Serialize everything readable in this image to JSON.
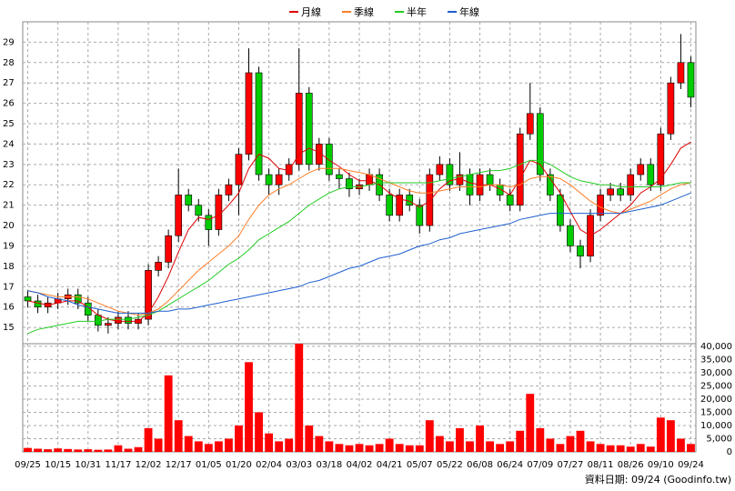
{
  "chart_data": [
    {
      "type": "candlestick",
      "ylim": [
        14.2,
        30.0
      ],
      "yticks": [
        15,
        16,
        17,
        18,
        19,
        20,
        21,
        22,
        23,
        24,
        25,
        26,
        27,
        28,
        29
      ],
      "grid": true,
      "up_color": "#ff0000",
      "down_color": "#00cc00",
      "open": [
        16.5,
        16.3,
        16.0,
        16.2,
        16.4,
        16.6,
        16.2,
        15.6,
        15.1,
        15.2,
        15.5,
        15.2,
        15.4,
        17.8,
        18.2,
        19.5,
        21.5,
        21.0,
        20.5,
        19.8,
        21.5,
        22.0,
        23.5,
        27.5,
        22.5,
        22.0,
        22.5,
        23.0,
        26.5,
        23.0,
        24.0,
        22.5,
        22.3,
        21.8,
        22.0,
        22.5,
        21.5,
        20.5,
        21.5,
        21.0,
        20.0,
        22.5,
        23.0,
        22.0,
        22.5,
        21.5,
        22.5,
        22.0,
        21.5,
        21.0,
        24.5,
        25.5,
        22.5,
        21.5,
        20.0,
        19.0,
        18.5,
        20.5,
        21.5,
        21.8,
        21.5,
        22.5,
        23.0,
        22.0,
        24.5,
        27.0,
        28.0
      ],
      "high": [
        16.8,
        16.6,
        16.5,
        16.7,
        16.9,
        16.9,
        16.5,
        15.9,
        15.5,
        15.8,
        15.8,
        15.7,
        18.1,
        18.5,
        19.8,
        22.8,
        21.8,
        21.3,
        20.8,
        21.8,
        22.3,
        23.8,
        28.7,
        27.8,
        22.8,
        22.8,
        23.3,
        28.7,
        26.8,
        24.3,
        24.3,
        22.8,
        22.6,
        22.3,
        22.8,
        22.8,
        21.8,
        21.8,
        21.8,
        21.3,
        22.8,
        23.4,
        23.3,
        23.6,
        22.8,
        22.8,
        22.8,
        22.3,
        21.8,
        24.8,
        27.0,
        25.8,
        22.8,
        21.8,
        20.3,
        19.3,
        20.8,
        21.8,
        22.1,
        22.1,
        22.8,
        23.3,
        23.3,
        24.8,
        27.3,
        29.4,
        28.3
      ],
      "low": [
        16.0,
        15.7,
        15.7,
        15.9,
        16.1,
        15.9,
        15.3,
        14.8,
        14.7,
        14.9,
        14.9,
        14.9,
        15.1,
        17.5,
        17.9,
        19.2,
        20.7,
        20.2,
        19.0,
        19.5,
        21.2,
        20.5,
        23.2,
        22.2,
        21.5,
        21.5,
        22.2,
        22.7,
        22.7,
        22.7,
        22.2,
        21.8,
        21.4,
        21.5,
        21.7,
        21.2,
        20.2,
        20.2,
        20.7,
        19.6,
        19.7,
        22.2,
        21.7,
        21.7,
        21.0,
        21.2,
        21.7,
        21.2,
        20.7,
        20.7,
        24.2,
        22.2,
        21.2,
        19.7,
        18.7,
        17.9,
        18.2,
        20.2,
        21.2,
        21.2,
        21.2,
        22.2,
        21.7,
        21.7,
        24.2,
        26.7,
        25.8
      ],
      "close": [
        16.3,
        16.0,
        16.2,
        16.4,
        16.6,
        16.2,
        15.6,
        15.1,
        15.2,
        15.5,
        15.2,
        15.4,
        17.8,
        18.2,
        19.5,
        21.5,
        21.0,
        20.5,
        19.8,
        21.5,
        22.0,
        23.5,
        27.5,
        22.5,
        22.0,
        22.5,
        23.0,
        26.5,
        23.0,
        24.0,
        22.5,
        22.3,
        21.8,
        22.0,
        22.5,
        21.5,
        20.5,
        21.5,
        21.0,
        20.0,
        22.5,
        23.0,
        22.0,
        22.5,
        21.5,
        22.5,
        22.0,
        21.5,
        21.0,
        24.5,
        25.5,
        22.5,
        21.5,
        20.0,
        19.0,
        18.5,
        20.5,
        21.5,
        21.8,
        21.5,
        22.5,
        23.0,
        22.0,
        24.5,
        27.0,
        28.0,
        26.3
      ],
      "series": [
        {
          "name": "月線",
          "color": "#e00000",
          "values": [
            16.3,
            16.2,
            16.1,
            16.2,
            16.3,
            16.3,
            16.0,
            15.6,
            15.4,
            15.3,
            15.3,
            15.3,
            15.7,
            16.5,
            17.5,
            18.7,
            19.8,
            20.4,
            20.3,
            20.5,
            21.0,
            21.6,
            22.8,
            23.5,
            23.3,
            22.8,
            22.7,
            23.5,
            23.8,
            23.6,
            23.2,
            22.9,
            22.5,
            22.2,
            22.2,
            22.0,
            21.6,
            21.3,
            21.2,
            20.9,
            21.2,
            21.8,
            22.2,
            22.3,
            22.1,
            22.0,
            22.0,
            21.8,
            21.5,
            22.3,
            23.2,
            23.0,
            22.3,
            21.6,
            20.7,
            19.8,
            19.5,
            19.8,
            20.2,
            20.6,
            21.0,
            21.6,
            21.9,
            22.3,
            23.0,
            23.8,
            24.1
          ]
        },
        {
          "name": "季線",
          "color": "#ff7f27",
          "values": [
            16.8,
            16.7,
            16.6,
            16.5,
            16.5,
            16.5,
            16.4,
            16.2,
            16.0,
            15.8,
            15.7,
            15.6,
            15.7,
            15.9,
            16.3,
            16.8,
            17.3,
            17.8,
            18.2,
            18.6,
            19.0,
            19.5,
            20.3,
            21.0,
            21.5,
            21.8,
            22.0,
            22.3,
            22.6,
            22.8,
            22.8,
            22.8,
            22.7,
            22.6,
            22.5,
            22.3,
            22.1,
            21.9,
            21.7,
            21.6,
            21.6,
            21.7,
            21.8,
            21.9,
            21.9,
            21.9,
            22.0,
            22.0,
            21.9,
            22.0,
            22.3,
            22.4,
            22.4,
            22.3,
            22.0,
            21.6,
            21.2,
            20.9,
            20.7,
            20.6,
            20.8,
            21.0,
            21.2,
            21.5,
            21.8,
            22.0,
            22.1
          ]
        },
        {
          "name": "半年",
          "color": "#22cc22",
          "values": [
            14.7,
            14.9,
            15.0,
            15.1,
            15.2,
            15.3,
            15.3,
            15.3,
            15.4,
            15.4,
            15.4,
            15.5,
            15.6,
            15.8,
            16.1,
            16.4,
            16.7,
            17.0,
            17.3,
            17.7,
            18.1,
            18.4,
            18.8,
            19.3,
            19.6,
            19.9,
            20.2,
            20.6,
            21.0,
            21.3,
            21.6,
            21.8,
            21.9,
            21.9,
            22.0,
            22.1,
            22.1,
            22.1,
            22.1,
            22.1,
            22.1,
            22.2,
            22.3,
            22.4,
            22.5,
            22.6,
            22.7,
            22.7,
            22.8,
            23.0,
            23.2,
            23.2,
            23.0,
            22.7,
            22.4,
            22.2,
            22.1,
            22.0,
            22.0,
            21.9,
            21.9,
            21.9,
            21.9,
            21.9,
            22.0,
            22.1,
            22.1
          ]
        },
        {
          "name": "年線",
          "color": "#1f5fd0",
          "values": [
            16.8,
            16.7,
            16.5,
            16.4,
            16.3,
            16.1,
            16.0,
            15.9,
            15.8,
            15.7,
            15.7,
            15.7,
            15.7,
            15.8,
            15.8,
            15.9,
            15.9,
            16.0,
            16.1,
            16.2,
            16.3,
            16.4,
            16.5,
            16.6,
            16.7,
            16.8,
            16.9,
            17.0,
            17.2,
            17.3,
            17.5,
            17.7,
            17.9,
            18.0,
            18.2,
            18.4,
            18.5,
            18.6,
            18.8,
            19.0,
            19.1,
            19.3,
            19.4,
            19.6,
            19.7,
            19.8,
            19.9,
            20.0,
            20.1,
            20.3,
            20.4,
            20.5,
            20.6,
            20.6,
            20.6,
            20.6,
            20.6,
            20.6,
            20.6,
            20.6,
            20.7,
            20.8,
            20.9,
            21.0,
            21.2,
            21.4,
            21.6
          ]
        }
      ]
    },
    {
      "type": "bar",
      "color": "#ff0000",
      "ylim": [
        0,
        41000
      ],
      "yticks": [
        0,
        {
          "value": 5000,
          "label": "5,000"
        },
        {
          "value": 10000,
          "label": "10,000"
        },
        {
          "value": 15000,
          "label": "15,000"
        },
        {
          "value": 20000,
          "label": "20,000"
        },
        {
          "value": 25000,
          "label": "25,000"
        },
        {
          "value": 30000,
          "label": "30,000"
        },
        {
          "value": 35000,
          "label": "35,000"
        },
        {
          "value": 40000,
          "label": "40,000"
        }
      ],
      "grid": true,
      "categories": [
        "09/25",
        null,
        null,
        "10/15",
        null,
        null,
        "10/31",
        null,
        null,
        "11/17",
        null,
        null,
        "12/02",
        null,
        null,
        "12/17",
        null,
        null,
        "01/05",
        null,
        null,
        "01/20",
        null,
        null,
        "02/04",
        null,
        null,
        "03/03",
        null,
        null,
        "03/18",
        null,
        null,
        "04/02",
        null,
        null,
        "04/21",
        null,
        null,
        "05/07",
        null,
        null,
        "05/22",
        null,
        null,
        "06/08",
        null,
        null,
        "06/24",
        null,
        null,
        "07/09",
        null,
        null,
        "07/27",
        null,
        null,
        "08/11",
        null,
        null,
        "08/26",
        null,
        null,
        "09/10",
        null,
        null,
        "09/24"
      ],
      "values": [
        1500,
        1200,
        1000,
        1300,
        1100,
        900,
        1000,
        800,
        900,
        2500,
        1200,
        1800,
        9000,
        5000,
        29000,
        12000,
        6000,
        4000,
        3000,
        4000,
        5000,
        10000,
        34000,
        15000,
        7000,
        4000,
        5000,
        41000,
        10000,
        6000,
        4000,
        3000,
        2500,
        3000,
        2500,
        3000,
        5000,
        3000,
        2500,
        2500,
        12000,
        6000,
        4000,
        9000,
        4000,
        10000,
        4000,
        3000,
        4000,
        8000,
        22000,
        9000,
        5000,
        3000,
        6000,
        8000,
        4000,
        3000,
        2500,
        2500,
        2000,
        3000,
        2000,
        13000,
        12000,
        5000,
        3000
      ]
    }
  ],
  "footer": "資料日期: 09/24 (Goodinfo.tw)"
}
